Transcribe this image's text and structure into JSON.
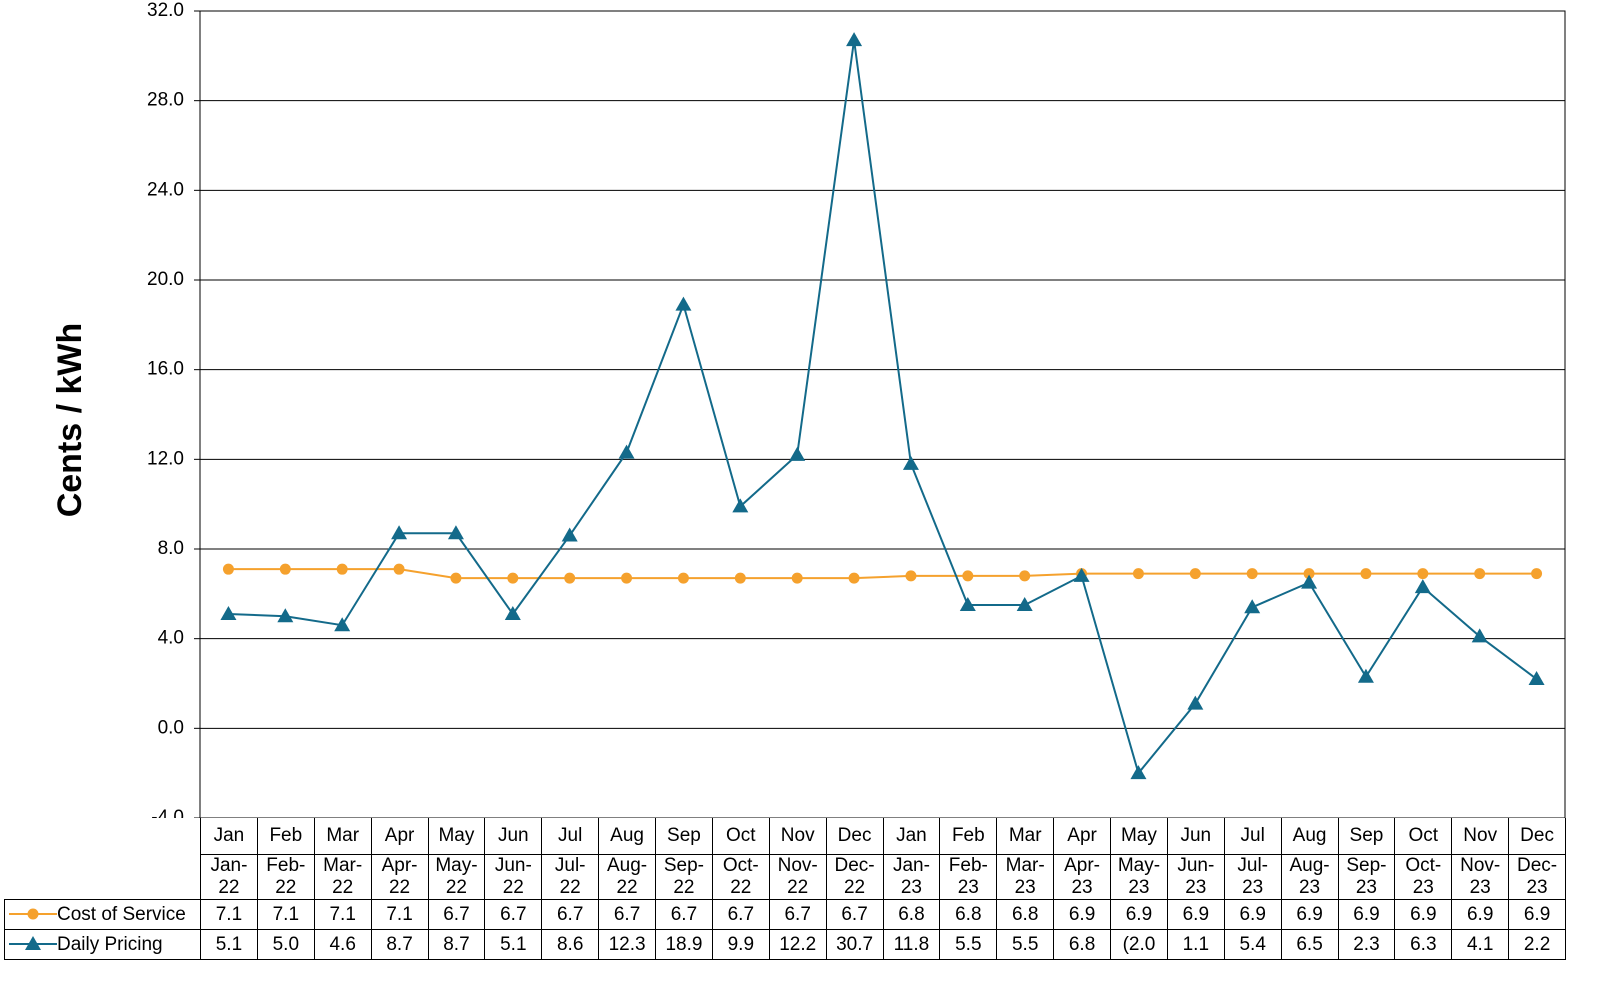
{
  "chart_data": {
    "type": "line",
    "ylabel": "Cents / kWh",
    "categories": [
      "Jan",
      "Feb",
      "Mar",
      "Apr",
      "May",
      "Jun",
      "Jul",
      "Aug",
      "Sep",
      "Oct",
      "Nov",
      "Dec",
      "Jan",
      "Feb",
      "Mar",
      "Apr",
      "May",
      "Jun",
      "Jul",
      "Aug",
      "Sep",
      "Oct",
      "Nov",
      "Dec"
    ],
    "table_header": [
      "Jan-22",
      "Feb-22",
      "Mar-22",
      "Apr-22",
      "May-22",
      "Jun-22",
      "Jul-22",
      "Aug-22",
      "Sep-22",
      "Oct-22",
      "Nov-22",
      "Dec-22",
      "Jan-23",
      "Feb-23",
      "Mar-23",
      "Apr-23",
      "May-23",
      "Jun-23",
      "Jul-23",
      "Aug-23",
      "Sep-23",
      "Oct-23",
      "Nov-23",
      "Dec-23"
    ],
    "ylim": [
      -4,
      32
    ],
    "yticks": [
      {
        "value": -4,
        "label": "-4.0"
      },
      {
        "value": 0,
        "label": "0.0"
      },
      {
        "value": 4,
        "label": "4.0"
      },
      {
        "value": 8,
        "label": "8.0"
      },
      {
        "value": 12,
        "label": "12.0"
      },
      {
        "value": 16,
        "label": "16.0"
      },
      {
        "value": 20,
        "label": "20.0"
      },
      {
        "value": 24,
        "label": "24.0"
      },
      {
        "value": 28,
        "label": "28.0"
      },
      {
        "value": 32,
        "label": "32.0"
      }
    ],
    "grid": true,
    "series": [
      {
        "name": "Cost of Service",
        "color": "#f5a12d",
        "marker": "circle",
        "values": [
          7.1,
          7.1,
          7.1,
          7.1,
          6.7,
          6.7,
          6.7,
          6.7,
          6.7,
          6.7,
          6.7,
          6.7,
          6.8,
          6.8,
          6.8,
          6.9,
          6.9,
          6.9,
          6.9,
          6.9,
          6.9,
          6.9,
          6.9,
          6.9
        ]
      },
      {
        "name": "Daily Pricing",
        "color": "#136a8a",
        "marker": "triangle",
        "values": [
          5.1,
          5.0,
          4.6,
          8.7,
          8.7,
          5.1,
          8.6,
          12.3,
          18.9,
          9.9,
          12.2,
          30.7,
          11.8,
          5.5,
          5.5,
          6.8,
          -2.0,
          1.1,
          5.4,
          6.5,
          2.3,
          6.3,
          4.1,
          2.2
        ],
        "value_labels": [
          "5.1",
          "5.0",
          "4.6",
          "8.7",
          "8.7",
          "5.1",
          "8.6",
          "12.3",
          "18.9",
          "9.9",
          "12.2",
          "30.7",
          "11.8",
          "5.5",
          "5.5",
          "6.8",
          "(2.0",
          "1.1",
          "5.4",
          "6.5",
          "2.3",
          "6.3",
          "4.1",
          "2.2"
        ]
      }
    ]
  }
}
